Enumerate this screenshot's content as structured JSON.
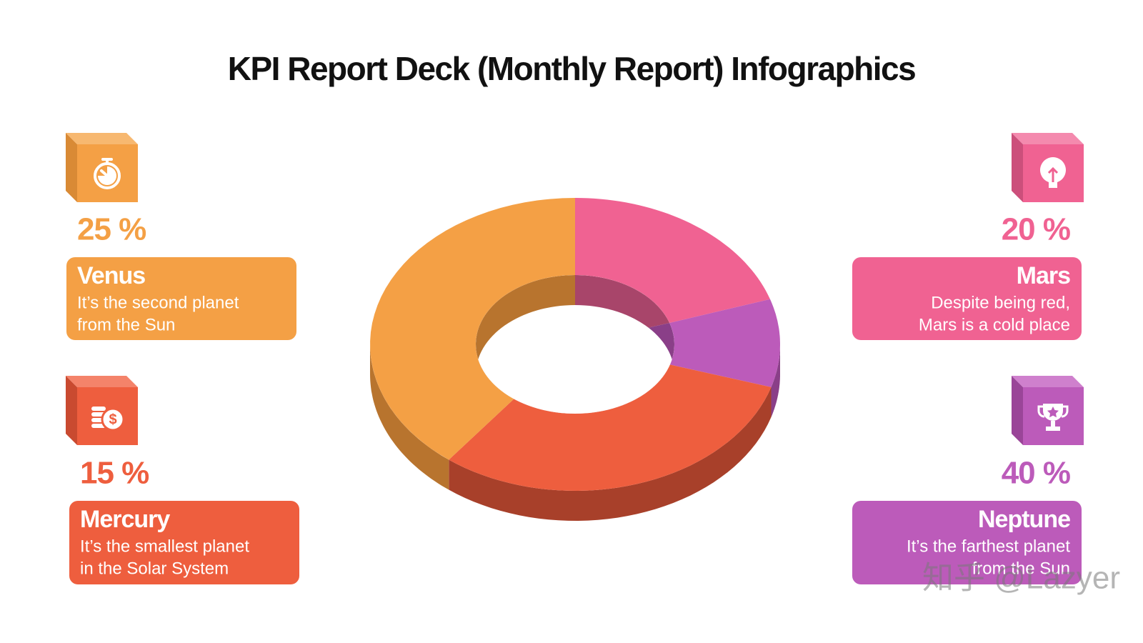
{
  "title": "KPI Report Deck (Monthly Report) Infographics",
  "cards": [
    {
      "percent": "25 %",
      "name": "Venus",
      "lines": [
        "It’s the second planet",
        "from the Sun"
      ]
    },
    {
      "percent": "15 %",
      "name": "Mercury",
      "lines": [
        "It’s the smallest planet",
        "in the Solar System"
      ]
    },
    {
      "percent": "20 %",
      "name": "Mars",
      "lines": [
        "Despite being red,",
        "Mars is a cold place"
      ]
    },
    {
      "percent": "40 %",
      "name": "Neptune",
      "lines": [
        "It’s the farthest planet",
        "from the Sun"
      ]
    }
  ],
  "watermark": "知乎 @Lazyer"
}
